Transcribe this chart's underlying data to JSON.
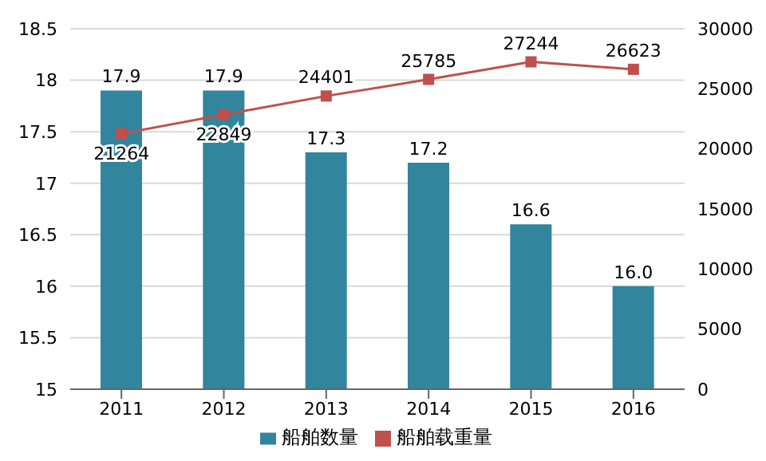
{
  "chart_data": {
    "type": "bar",
    "categories": [
      "2011",
      "2012",
      "2013",
      "2014",
      "2015",
      "2016"
    ],
    "series": [
      {
        "name": "船舶数量",
        "color": "#31859c",
        "values": [
          17.9,
          17.9,
          17.3,
          17.2,
          16.6,
          16.0
        ],
        "value_labels": [
          "17.9",
          "17.9",
          "17.3",
          "17.2",
          "16.6",
          "16.0"
        ]
      },
      {
        "name": "船舶载重量",
        "type": "line",
        "axis": "y2",
        "color": "#c0504d",
        "marker": "square",
        "line_style": "solid",
        "values": [
          21264,
          22849,
          24401,
          25785,
          27244,
          26623
        ],
        "value_labels": [
          "21264",
          "22849",
          "24401",
          "25785",
          "27244",
          "26623"
        ]
      }
    ],
    "ylim": [
      15,
      18.5
    ],
    "yticks": [
      15,
      15.5,
      16,
      16.5,
      17,
      17.5,
      18,
      18.5
    ],
    "y2lim": [
      0,
      30000
    ],
    "y2ticks": [
      0,
      5000,
      10000,
      15000,
      20000,
      25000,
      30000
    ],
    "grid": "y",
    "legend": "bottom"
  }
}
